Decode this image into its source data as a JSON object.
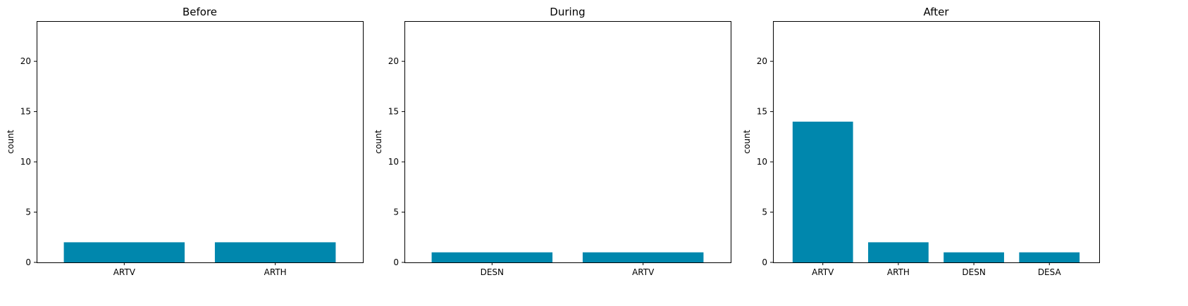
{
  "chart_data": [
    {
      "type": "bar",
      "title": "Before",
      "xlabel": "",
      "ylabel": "count",
      "categories": [
        "ARTV",
        "ARTH"
      ],
      "values": [
        2,
        2
      ],
      "ylim": [
        0,
        24
      ],
      "yticks": [
        0,
        5,
        10,
        15,
        20
      ],
      "grid": false,
      "bar_color": "#0087ad"
    },
    {
      "type": "bar",
      "title": "During",
      "xlabel": "",
      "ylabel": "count",
      "categories": [
        "DESN",
        "ARTV"
      ],
      "values": [
        1,
        1
      ],
      "ylim": [
        0,
        24
      ],
      "yticks": [
        0,
        5,
        10,
        15,
        20
      ],
      "grid": false,
      "bar_color": "#0087ad"
    },
    {
      "type": "bar",
      "title": "After",
      "xlabel": "",
      "ylabel": "count",
      "categories": [
        "ARTV",
        "ARTH",
        "DESN",
        "DESA"
      ],
      "values": [
        14,
        2,
        1,
        1
      ],
      "ylim": [
        0,
        24
      ],
      "yticks": [
        0,
        5,
        10,
        15,
        20
      ],
      "grid": false,
      "bar_color": "#0087ad"
    }
  ]
}
